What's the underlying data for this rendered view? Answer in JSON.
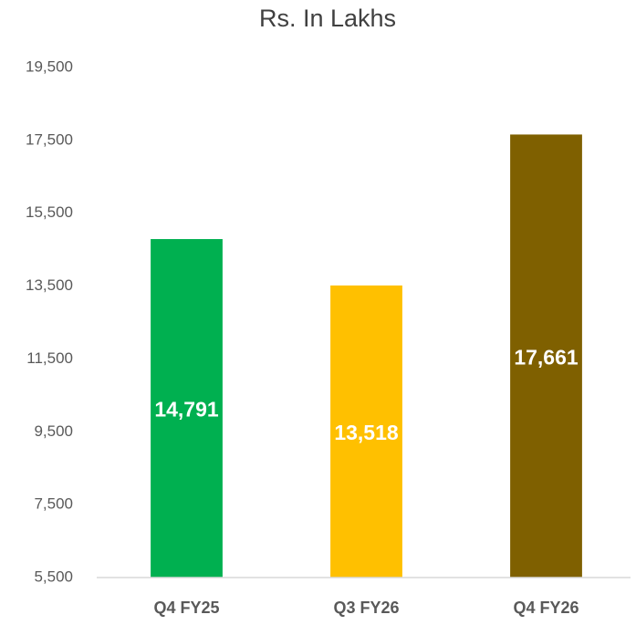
{
  "chart_data": {
    "type": "bar",
    "title": "Rs. In Lakhs",
    "categories": [
      "Q4 FY25",
      "Q3 FY26",
      "Q4 FY26"
    ],
    "values": [
      14791,
      13518,
      17661
    ],
    "value_labels": [
      "14,791",
      "13,518",
      "17,661"
    ],
    "colors": [
      "#00b050",
      "#ffc000",
      "#7f6000"
    ],
    "ylim": [
      5500,
      19500
    ],
    "yticks": [
      {
        "value": 5500,
        "label": "5,500"
      },
      {
        "value": 7500,
        "label": "7,500"
      },
      {
        "value": 9500,
        "label": "9,500"
      },
      {
        "value": 11500,
        "label": "11,500"
      },
      {
        "value": 13500,
        "label": "13,500"
      },
      {
        "value": 15500,
        "label": "15,500"
      },
      {
        "value": 17500,
        "label": "17,500"
      },
      {
        "value": 19500,
        "label": "19,500"
      }
    ],
    "grid": false
  }
}
